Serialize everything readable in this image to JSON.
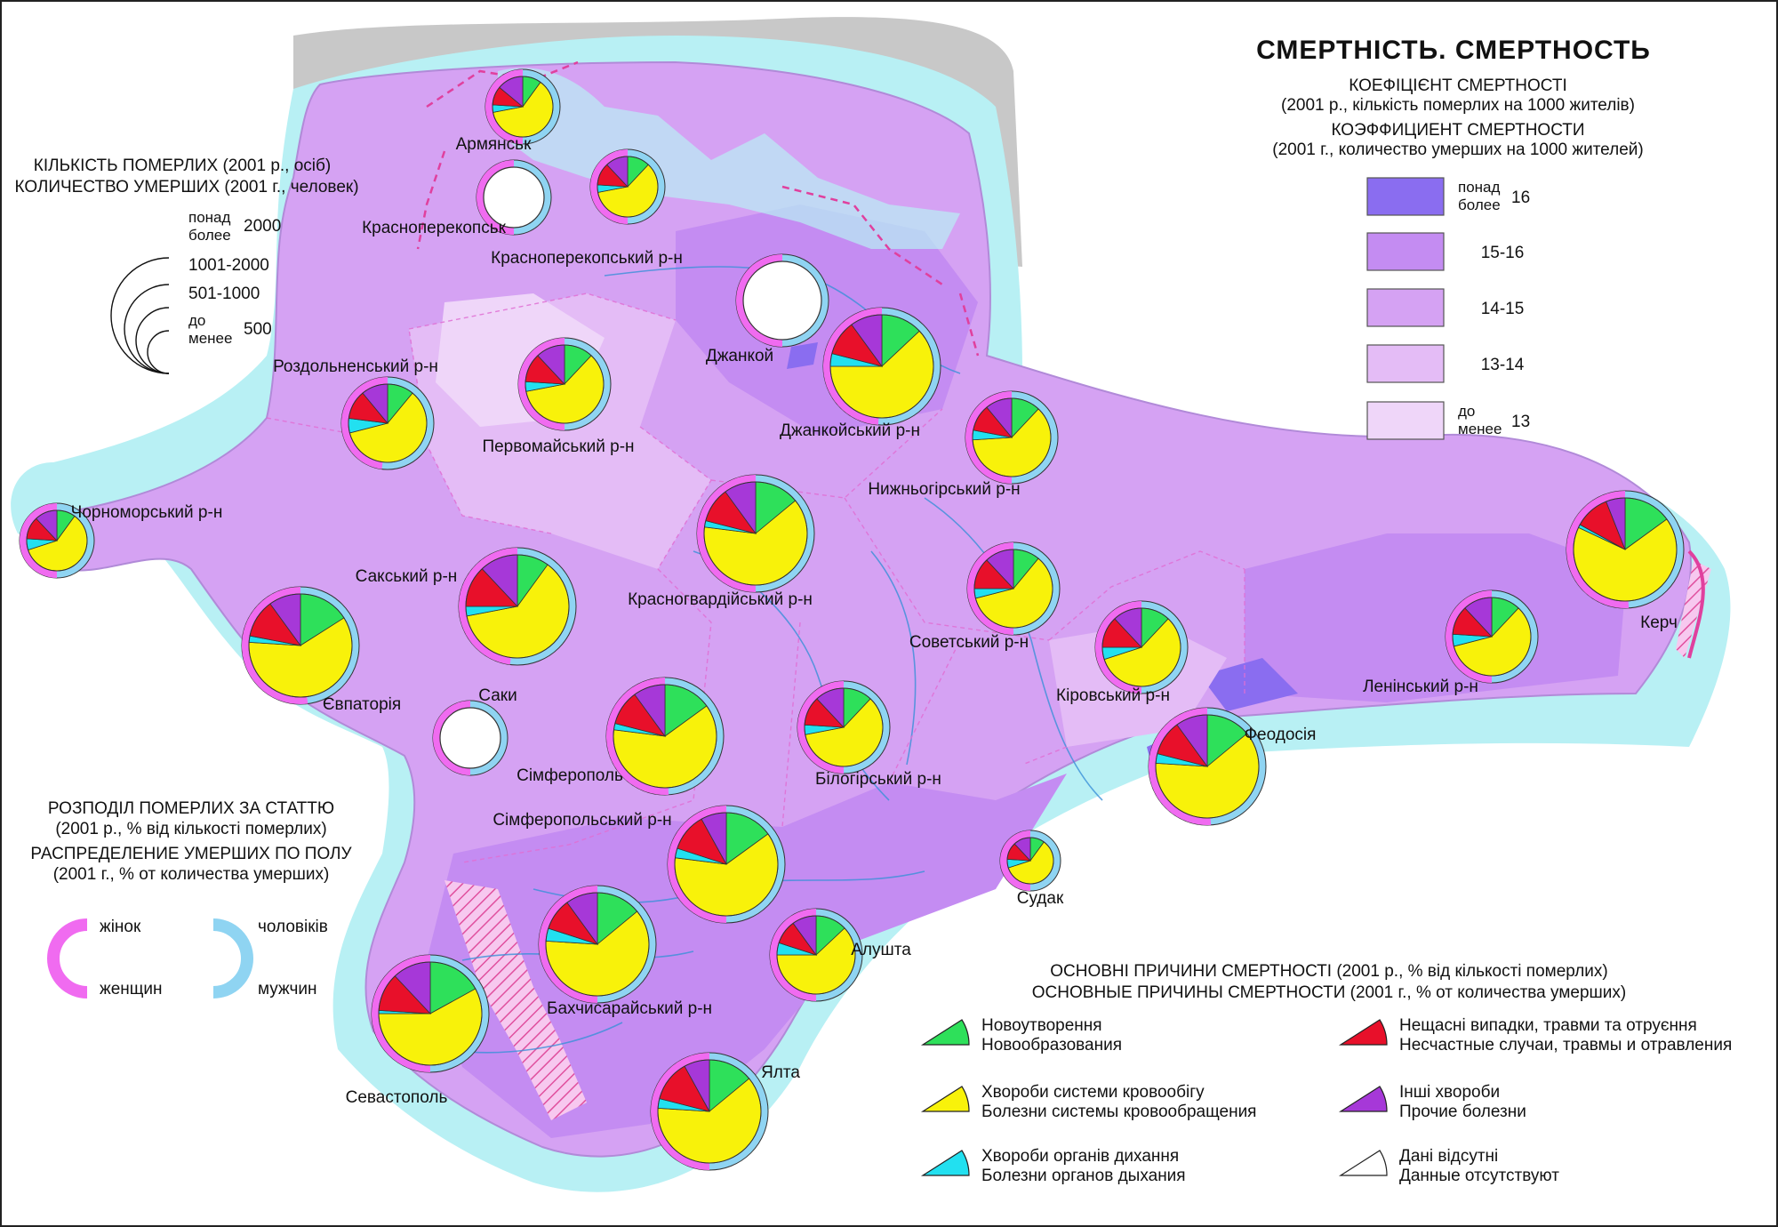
{
  "title": "СМЕРТНІСТЬ. СМЕРТНОСТЬ",
  "rate_legend": {
    "title_ua": "КОЕФІЦІЄНТ СМЕРТНОСТІ",
    "sub_ua": "(2001 р., кількість померлих на 1000 жителів)",
    "title_ru": "КОЭФФИЦИЕНТ СМЕРТНОСТИ",
    "sub_ru": "(2001 г., количество умерших на 1000 жителей)",
    "classes": [
      {
        "top": "понад",
        "bottom": "более",
        "value": "16",
        "color": "#8a6df0"
      },
      {
        "top": "",
        "bottom": "",
        "value": "15-16",
        "color": "#c48cf2"
      },
      {
        "top": "",
        "bottom": "",
        "value": "14-15",
        "color": "#d5a2f3"
      },
      {
        "top": "",
        "bottom": "",
        "value": "13-14",
        "color": "#e4bcf6"
      },
      {
        "top": "до",
        "bottom": "менее",
        "value": "13",
        "color": "#efd6f9"
      }
    ]
  },
  "size_legend": {
    "title_ua": "КІЛЬКІСТЬ ПОМЕРЛИХ (2001 р., осіб)",
    "title_ru": "КОЛИЧЕСТВО УМЕРШИХ (2001 г., человек)",
    "classes": [
      {
        "top": "понад",
        "bottom": "более",
        "value": "2000"
      },
      {
        "top": "",
        "bottom": "",
        "value": "1001-2000"
      },
      {
        "top": "",
        "bottom": "",
        "value": "501-1000"
      },
      {
        "top": "до",
        "bottom": "менее",
        "value": "500"
      }
    ]
  },
  "sex_legend": {
    "title_ua": "РОЗПОДІЛ ПОМЕРЛИХ ЗА СТАТТЮ",
    "sub_ua": "(2001 р., % від кількості померлих)",
    "title_ru": "РАСПРЕДЕЛЕНИЕ УМЕРШИХ ПО ПОЛУ",
    "sub_ru": "(2001 г., % от количества умерших)",
    "female_ua": "жінок",
    "female_ru": "женщин",
    "male_ua": "чоловіків",
    "male_ru": "мужчин",
    "female_color": "#f06bf0",
    "male_color": "#8fd4f2"
  },
  "causes_legend": {
    "title_ua": "ОСНОВНІ ПРИЧИНИ СМЕРТНОСТІ (2001 р., % від кількості померлих)",
    "title_ru": "ОСНОВНЫЕ ПРИЧИНЫ СМЕРТНОСТИ (2001 г., % от количества умерших)",
    "items": [
      {
        "ua": "Новоутворення",
        "ru": "Новообразования",
        "color": "#2ee05a"
      },
      {
        "ua": "Хвороби системи кровообігу",
        "ru": "Болезни системы кровообращения",
        "color": "#f8f20a"
      },
      {
        "ua": "Хвороби органів дихання",
        "ru": "Болезни органов дыхания",
        "color": "#22e0f0"
      },
      {
        "ua": "Нещасні випадки, травми та отруєння",
        "ru": "Несчастные случаи, травмы и отравления",
        "color": "#e8102a"
      },
      {
        "ua": "Інші хвороби",
        "ru": "Прочие болезни",
        "color": "#a638d8"
      },
      {
        "ua": "Дані відсутні",
        "ru": "Данные отсутствуют",
        "color": "#ffffff"
      }
    ]
  },
  "places": [
    {
      "name": "Армянськ",
      "size_class": "501-1000",
      "female_pct": 50,
      "causes_pct": [
        10,
        62,
        4,
        10,
        14
      ]
    },
    {
      "name": "Красноперекопськ",
      "size_class": "501-1000",
      "female_pct": 50,
      "causes_pct": null
    },
    {
      "name": "Красноперекопський р-н",
      "size_class": "501-1000",
      "female_pct": 50,
      "causes_pct": [
        12,
        60,
        4,
        12,
        12
      ]
    },
    {
      "name": "Джанкой",
      "size_class": "1001-2000",
      "female_pct": 50,
      "causes_pct": null
    },
    {
      "name": "Джанкойський р-н",
      "size_class": "понад 2000",
      "female_pct": 49,
      "causes_pct": [
        13,
        62,
        4,
        11,
        10
      ]
    },
    {
      "name": "Роздольненський р-н",
      "size_class": "1001-2000",
      "female_pct": 48,
      "causes_pct": [
        11,
        60,
        6,
        12,
        11
      ]
    },
    {
      "name": "Первомайський р-н",
      "size_class": "1001-2000",
      "female_pct": 50,
      "causes_pct": [
        12,
        60,
        4,
        12,
        12
      ]
    },
    {
      "name": "Нижньогірський р-н",
      "size_class": "1001-2000",
      "female_pct": 50,
      "causes_pct": [
        12,
        62,
        4,
        11,
        11
      ]
    },
    {
      "name": "Чорноморський р-н",
      "size_class": "501-1000",
      "female_pct": 50,
      "causes_pct": [
        10,
        60,
        6,
        12,
        12
      ]
    },
    {
      "name": "Красногвардійський р-н",
      "size_class": "понад 2000",
      "female_pct": 50,
      "causes_pct": [
        14,
        63,
        2,
        11,
        10
      ]
    },
    {
      "name": "Сакський р-н",
      "size_class": "понад 2000",
      "female_pct": 48,
      "causes_pct": [
        10,
        62,
        3,
        13,
        12
      ]
    },
    {
      "name": "Євпаторія",
      "size_class": "понад 2000",
      "female_pct": 52,
      "causes_pct": [
        16,
        60,
        2,
        12,
        10
      ]
    },
    {
      "name": "Советський р-н",
      "size_class": "1001-2000",
      "female_pct": 50,
      "causes_pct": [
        11,
        60,
        4,
        13,
        12
      ]
    },
    {
      "name": "Кіровський р-н",
      "size_class": "1001-2000",
      "female_pct": 50,
      "causes_pct": [
        12,
        58,
        5,
        13,
        12
      ]
    },
    {
      "name": "Ленінський р-н",
      "size_class": "1001-2000",
      "female_pct": 50,
      "causes_pct": [
        12,
        59,
        5,
        12,
        12
      ]
    },
    {
      "name": "Керч",
      "size_class": "понад 2000",
      "female_pct": 51,
      "causes_pct": [
        15,
        67,
        1,
        11,
        6
      ]
    },
    {
      "name": "Саки",
      "size_class": "501-1000",
      "female_pct": 50,
      "causes_pct": null
    },
    {
      "name": "Сімферополь",
      "size_class": "понад 2000",
      "female_pct": 51,
      "causes_pct": [
        15,
        62,
        2,
        11,
        10
      ]
    },
    {
      "name": "Білогірський р-н",
      "size_class": "1001-2000",
      "female_pct": 50,
      "causes_pct": [
        12,
        60,
        4,
        12,
        12
      ]
    },
    {
      "name": "Феодосія",
      "size_class": "понад 2000",
      "female_pct": 51,
      "causes_pct": [
        14,
        62,
        3,
        11,
        10
      ]
    },
    {
      "name": "Сімферопольський р-н",
      "size_class": "понад 2000",
      "female_pct": 50,
      "causes_pct": [
        15,
        62,
        3,
        12,
        8
      ]
    },
    {
      "name": "Судак",
      "size_class": "до 500",
      "female_pct": 50,
      "causes_pct": [
        10,
        60,
        6,
        12,
        12
      ]
    },
    {
      "name": "Бахчисарайський р-н",
      "size_class": "понад 2000",
      "female_pct": 50,
      "causes_pct": [
        14,
        62,
        4,
        10,
        10
      ]
    },
    {
      "name": "Алушта",
      "size_class": "1001-2000",
      "female_pct": 50,
      "causes_pct": [
        13,
        62,
        5,
        10,
        10
      ]
    },
    {
      "name": "Севастополь",
      "size_class": "понад 2000",
      "female_pct": 50,
      "causes_pct": [
        17,
        58,
        1,
        12,
        12
      ]
    },
    {
      "name": "Ялта",
      "size_class": "понад 2000",
      "female_pct": 50,
      "causes_pct": [
        14,
        62,
        3,
        13,
        8
      ]
    }
  ]
}
